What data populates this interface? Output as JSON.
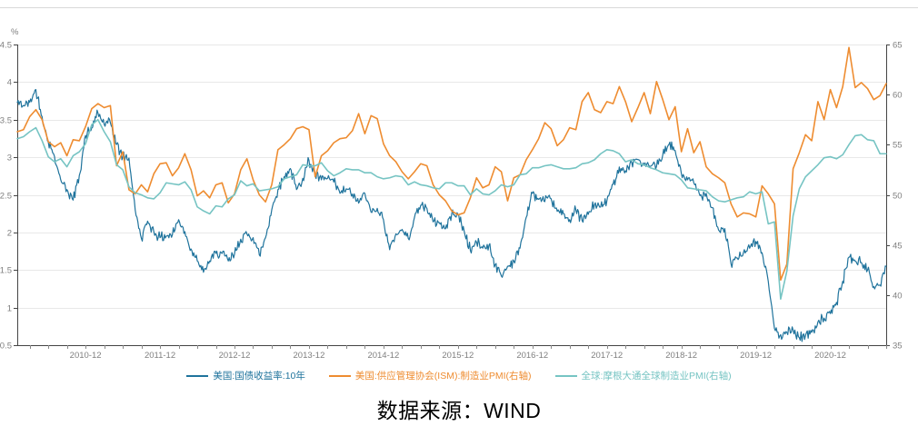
{
  "caption": {
    "text": "数据来源：WIND"
  },
  "chart_data": {
    "type": "line",
    "title": "",
    "background": "#ffffff",
    "grid": "horizontal",
    "grid_color": "#e8e8e8",
    "axis_color": "#444444",
    "tick_text_color": "#7f7f7f",
    "legend_position": "bottom",
    "x_unit": "month",
    "x_start": "2010-01",
    "x_end": "2021-09",
    "x_tick_labels": [
      "2010-12",
      "2011-12",
      "2012-12",
      "2013-12",
      "2014-12",
      "2015-12",
      "2016-12",
      "2017-12",
      "2018-12",
      "2019-12",
      "2020-12"
    ],
    "left_axis": {
      "unit": "%",
      "min": 0.5,
      "max": 4.5,
      "ticks": [
        4.5,
        4,
        3.5,
        3,
        2.5,
        2,
        1.5,
        1,
        0.5
      ]
    },
    "right_axis": {
      "min": 35,
      "max": 65,
      "ticks": [
        65,
        60,
        55,
        50,
        45,
        40,
        35
      ]
    },
    "series": [
      {
        "name": "美国:国债收益率:10年",
        "axis": "left",
        "color": "#1f739c",
        "style": "daily-noisy",
        "values": [
          3.73,
          3.69,
          3.73,
          3.9,
          3.54,
          3.2,
          3.01,
          2.7,
          2.57,
          2.43,
          2.76,
          3.29,
          3.39,
          3.59,
          3.44,
          3.46,
          3.17,
          3.0,
          2.99,
          2.3,
          1.92,
          2.15,
          2.01,
          1.93,
          1.95,
          1.97,
          2.17,
          2.01,
          1.78,
          1.62,
          1.47,
          1.62,
          1.72,
          1.72,
          1.62,
          1.71,
          1.91,
          1.98,
          1.93,
          1.7,
          1.93,
          2.3,
          2.57,
          2.74,
          2.85,
          2.57,
          2.72,
          2.96,
          2.77,
          2.7,
          2.72,
          2.67,
          2.52,
          2.58,
          2.51,
          2.39,
          2.52,
          2.27,
          2.32,
          2.17,
          1.77,
          1.98,
          2.04,
          1.92,
          2.2,
          2.36,
          2.32,
          2.14,
          2.13,
          2.05,
          2.25,
          2.24,
          2.02,
          1.76,
          1.87,
          1.79,
          1.83,
          1.57,
          1.42,
          1.55,
          1.62,
          1.79,
          2.2,
          2.52,
          2.44,
          2.41,
          2.45,
          2.28,
          2.25,
          2.17,
          2.3,
          2.16,
          2.24,
          2.37,
          2.34,
          2.42,
          2.64,
          2.87,
          2.82,
          2.93,
          2.97,
          2.89,
          2.88,
          2.88,
          3.03,
          3.17,
          3.09,
          2.78,
          2.7,
          2.66,
          2.49,
          2.52,
          2.33,
          2.03,
          2.05,
          1.58,
          1.66,
          1.73,
          1.79,
          1.88,
          1.73,
          1.35,
          0.72,
          0.64,
          0.67,
          0.7,
          0.6,
          0.63,
          0.67,
          0.81,
          0.86,
          0.92,
          1.07,
          1.35,
          1.67,
          1.62,
          1.6,
          1.5,
          1.28,
          1.3,
          1.55
        ]
      },
      {
        "name": "美国:供应管理协会(ISM):制造业PMI(右轴)",
        "axis": "right",
        "color": "#ee8c30",
        "style": "monthly",
        "values": [
          56.3,
          56.5,
          57.8,
          58.5,
          57.5,
          55.3,
          54.8,
          55.2,
          53.9,
          55.5,
          55.4,
          56.8,
          58.6,
          59.1,
          58.7,
          58.9,
          52.9,
          54.3,
          50.5,
          50.1,
          51.0,
          50.3,
          52.1,
          53.1,
          53.2,
          51.9,
          52.7,
          54.1,
          52.5,
          49.9,
          50.4,
          49.7,
          51.0,
          51.2,
          49.2,
          50.1,
          52.5,
          53.6,
          51.5,
          50.0,
          49.3,
          51.0,
          54.5,
          55.0,
          55.6,
          56.6,
          56.8,
          56.5,
          51.8,
          53.9,
          54.4,
          55.2,
          55.6,
          55.7,
          56.4,
          58.1,
          56.1,
          57.9,
          57.6,
          55.1,
          53.9,
          53.3,
          52.3,
          51.6,
          52.3,
          53.1,
          52.9,
          51.0,
          50.0,
          49.4,
          48.4,
          48.0,
          48.2,
          49.7,
          51.7,
          50.7,
          51.0,
          52.8,
          52.3,
          49.4,
          51.7,
          52.0,
          53.5,
          54.5,
          55.6,
          57.2,
          56.6,
          54.9,
          55.5,
          56.7,
          56.5,
          59.3,
          60.2,
          58.5,
          58.2,
          59.3,
          59.1,
          60.8,
          59.3,
          57.3,
          58.7,
          60.2,
          58.1,
          61.3,
          59.5,
          57.5,
          58.8,
          54.3,
          56.6,
          54.2,
          55.3,
          52.8,
          52.1,
          51.7,
          51.2,
          49.1,
          47.8,
          48.2,
          48.1,
          47.8,
          50.9,
          50.1,
          49.1,
          41.5,
          43.1,
          52.6,
          54.2,
          56.0,
          55.4,
          59.3,
          57.5,
          60.5,
          58.7,
          60.8,
          64.7,
          60.7,
          61.2,
          60.6,
          59.5,
          59.9,
          61.1
        ]
      },
      {
        "name": "全球:摩根大通全球制造业PMI(右轴)",
        "axis": "right",
        "color": "#76c4c3",
        "style": "monthly",
        "values": [
          55.6,
          55.8,
          56.3,
          56.7,
          55.4,
          53.8,
          53.3,
          53.6,
          52.8,
          53.9,
          54.3,
          55.1,
          57.0,
          57.5,
          56.3,
          55.3,
          53.0,
          52.5,
          50.8,
          50.2,
          50.0,
          49.7,
          49.6,
          50.2,
          51.2,
          51.1,
          51.0,
          51.3,
          50.5,
          48.8,
          48.4,
          48.1,
          48.9,
          48.8,
          49.6,
          50.0,
          51.4,
          50.9,
          51.1,
          50.4,
          50.5,
          50.6,
          50.8,
          51.6,
          51.8,
          52.0,
          53.0,
          52.9,
          52.9,
          53.2,
          52.4,
          51.9,
          52.2,
          52.6,
          52.5,
          52.5,
          52.2,
          52.2,
          51.8,
          51.6,
          51.7,
          51.9,
          51.8,
          51.0,
          51.3,
          51.0,
          50.9,
          50.7,
          50.6,
          51.2,
          51.2,
          50.9,
          50.9,
          50.0,
          50.6,
          50.1,
          50.0,
          50.4,
          51.0,
          50.8,
          51.0,
          52.0,
          52.1,
          52.7,
          52.7,
          52.9,
          53.0,
          52.8,
          52.6,
          52.6,
          52.7,
          53.1,
          53.2,
          53.5,
          54.1,
          54.5,
          54.4,
          54.1,
          53.3,
          53.5,
          53.1,
          53.0,
          52.7,
          52.5,
          52.2,
          52.1,
          52.0,
          51.5,
          50.7,
          50.6,
          50.5,
          50.4,
          49.8,
          49.4,
          49.3,
          49.5,
          49.7,
          49.8,
          50.3,
          50.1,
          50.3,
          47.1,
          47.3,
          39.6,
          42.4,
          47.9,
          50.6,
          51.8,
          52.4,
          53.0,
          53.7,
          53.8,
          53.6,
          54.0,
          55.0,
          55.9,
          56.0,
          55.5,
          55.4,
          54.1,
          54.1
        ]
      }
    ]
  }
}
